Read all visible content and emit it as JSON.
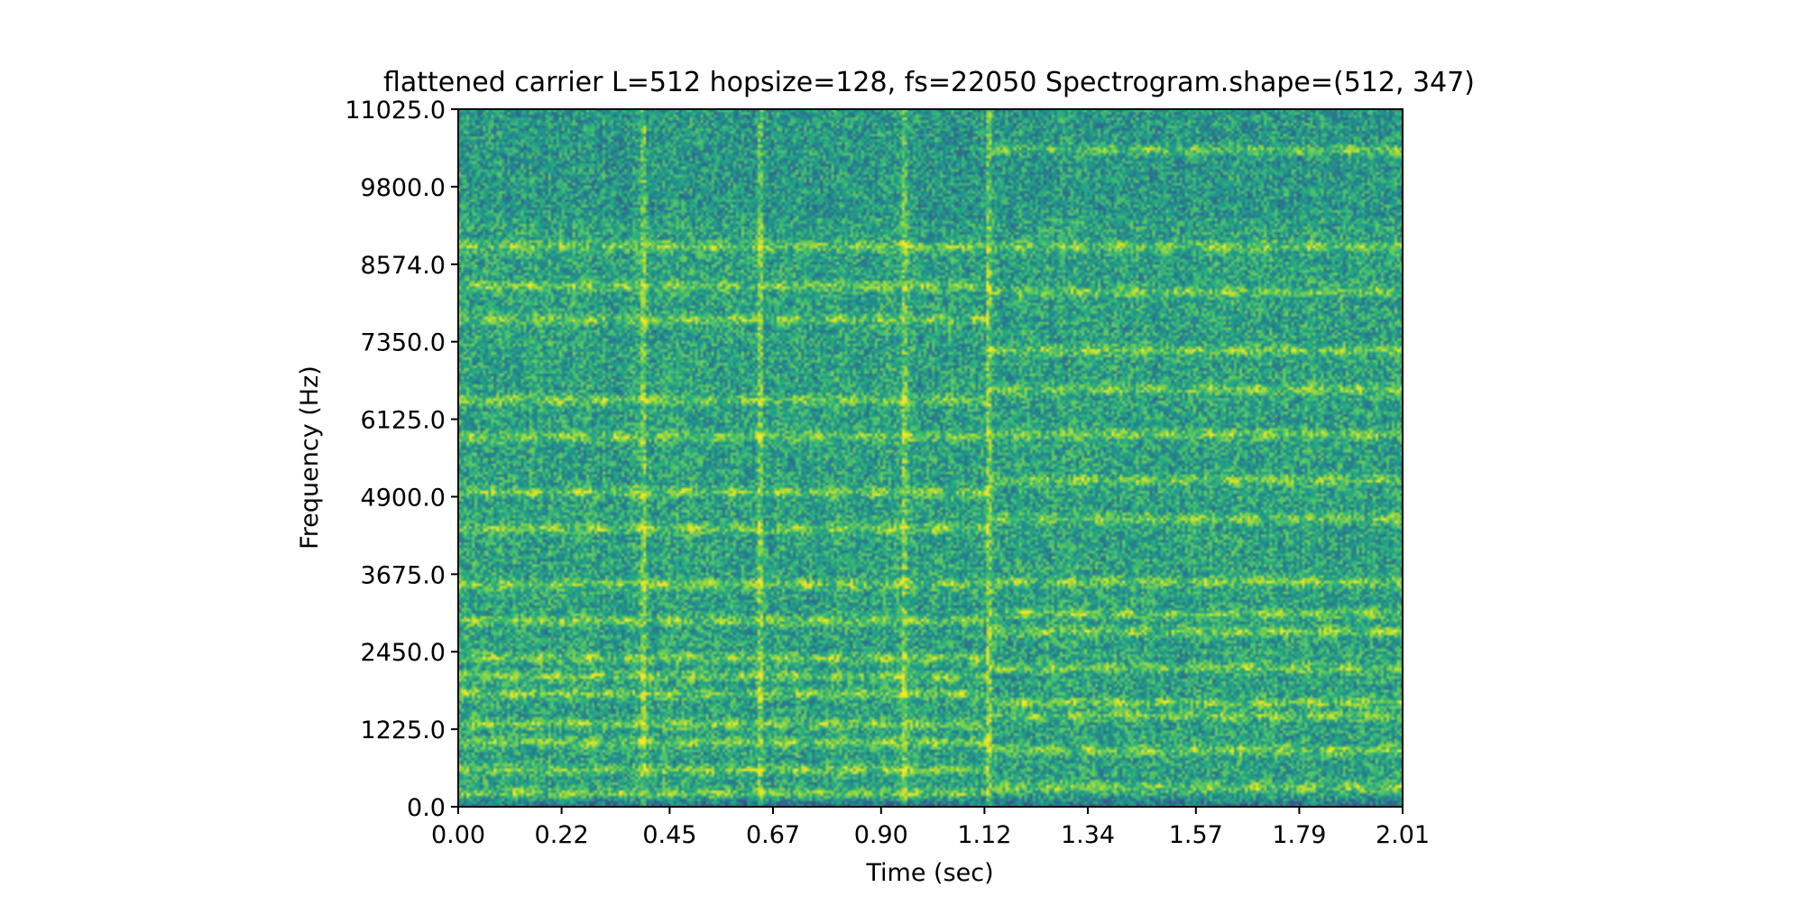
{
  "chart_data": {
    "type": "heatmap",
    "title": "flattened carrier L=512 hopsize=128, fs=22050 Spectrogram.shape=(512, 347)",
    "xlabel": "Time (sec)",
    "ylabel": "Frequency (Hz)",
    "x_ticks": [
      "0.00",
      "0.22",
      "0.45",
      "0.67",
      "0.90",
      "1.12",
      "1.34",
      "1.57",
      "1.79",
      "2.01"
    ],
    "y_ticks": [
      "0.0",
      "1225.0",
      "2450.0",
      "3675.0",
      "4900.0",
      "6125.0",
      "7350.0",
      "8574.0",
      "9800.0",
      "11025.0"
    ],
    "xlim": [
      0,
      2.01
    ],
    "ylim": [
      0,
      11025
    ],
    "colormap": "viridis",
    "segment_boundaries_sec": [
      0.39,
      0.64,
      0.95,
      1.13
    ],
    "strong_bands_hz_before_1_13s": [
      190,
      560,
      1000,
      1290,
      1770,
      2050,
      2340,
      2930,
      3510,
      4390,
      4970,
      5850,
      6430,
      7710,
      8240,
      8870
    ],
    "strong_bands_hz_after_1_13s": [
      290,
      880,
      1420,
      1630,
      2180,
      2760,
      3040,
      3550,
      4550,
      5160,
      5890,
      6600,
      7220,
      8150,
      8870,
      10400
    ]
  }
}
